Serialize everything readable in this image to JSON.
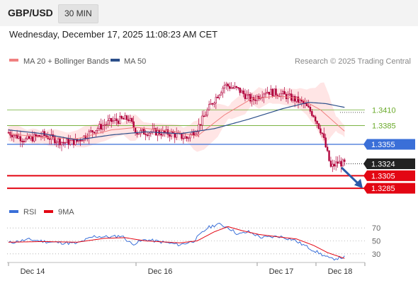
{
  "header": {
    "symbol": "GBP/USD",
    "timeframe": "30 MIN",
    "datetime": "Wednesday, December 17, 2025 11:08:23 AM CET"
  },
  "legend": {
    "ma20_label": "MA 20 + Bollinger Bands",
    "ma50_label": "MA 50",
    "credit": "Research © 2025 Trading Central",
    "rsi_label": "RSI",
    "rsi_ma_label": "9MA"
  },
  "colors": {
    "ma20": "#f08080",
    "ma50": "#2c4f8a",
    "band_fill": "#ffe0e0",
    "candle": "#b0003a",
    "pivot": "#3a6fd8",
    "resistance": "#6aaa2a",
    "support": "#e30613",
    "rsi": "#3a6fd8",
    "rsi_ma": "#e30613",
    "arrow": "#2a5aa8"
  },
  "chart_data": [
    {
      "type": "candlestick",
      "title": "GBP/USD",
      "x_ticks": [
        "Dec 14",
        "Dec 16",
        "Dec 17",
        "Dec 18"
      ],
      "ylim": [
        1.3258,
        1.3478
      ],
      "levels": [
        {
          "value": 1.341,
          "label": "1.3410",
          "kind": "resistance"
        },
        {
          "value": 1.3385,
          "label": "1.3385",
          "kind": "resistance"
        },
        {
          "value": 1.3355,
          "label": "1.3355",
          "kind": "pivot"
        },
        {
          "value": 1.3324,
          "label": "1.3324",
          "kind": "last_price"
        },
        {
          "value": 1.3305,
          "label": "1.3305",
          "kind": "support"
        },
        {
          "value": 1.3285,
          "label": "1.3285",
          "kind": "support"
        }
      ],
      "anchors": [
        [
          0,
          1.3374
        ],
        [
          10,
          1.3362
        ],
        [
          20,
          1.337
        ],
        [
          32,
          1.3358
        ],
        [
          40,
          1.336
        ],
        [
          50,
          1.3378
        ],
        [
          60,
          1.3392
        ],
        [
          70,
          1.3396
        ],
        [
          75,
          1.3374
        ],
        [
          85,
          1.3375
        ],
        [
          95,
          1.3372
        ],
        [
          104,
          1.3365
        ],
        [
          110,
          1.338
        ],
        [
          118,
          1.3418
        ],
        [
          126,
          1.345
        ],
        [
          134,
          1.3442
        ],
        [
          142,
          1.3425
        ],
        [
          150,
          1.344
        ],
        [
          158,
          1.3436
        ],
        [
          166,
          1.3428
        ],
        [
          172,
          1.342
        ],
        [
          178,
          1.3402
        ],
        [
          183,
          1.3372
        ],
        [
          186,
          1.334
        ],
        [
          188,
          1.3318
        ],
        [
          192,
          1.3326
        ],
        [
          196,
          1.3324
        ]
      ],
      "ma20": [
        [
          0,
          1.3372
        ],
        [
          20,
          1.3366
        ],
        [
          40,
          1.3364
        ],
        [
          60,
          1.3378
        ],
        [
          75,
          1.3382
        ],
        [
          95,
          1.3376
        ],
        [
          110,
          1.3368
        ],
        [
          126,
          1.3402
        ],
        [
          142,
          1.3428
        ],
        [
          158,
          1.3432
        ],
        [
          170,
          1.3428
        ],
        [
          182,
          1.341
        ],
        [
          196,
          1.3376
        ]
      ],
      "ma50": [
        [
          0,
          1.3378
        ],
        [
          20,
          1.3372
        ],
        [
          40,
          1.3362
        ],
        [
          60,
          1.337
        ],
        [
          80,
          1.3375
        ],
        [
          100,
          1.3372
        ],
        [
          120,
          1.338
        ],
        [
          140,
          1.3395
        ],
        [
          160,
          1.3412
        ],
        [
          175,
          1.3422
        ],
        [
          185,
          1.342
        ],
        [
          196,
          1.3414
        ]
      ]
    },
    {
      "type": "line",
      "title": "RSI",
      "y_ticks": [
        30,
        50,
        70
      ],
      "ylim": [
        20,
        80
      ],
      "series": [
        {
          "name": "RSI",
          "points": [
            [
              0,
              47
            ],
            [
              12,
              52
            ],
            [
              25,
              48
            ],
            [
              40,
              46
            ],
            [
              50,
              57
            ],
            [
              60,
              56
            ],
            [
              66,
              58
            ],
            [
              72,
              45
            ],
            [
              80,
              52
            ],
            [
              90,
              48
            ],
            [
              100,
              44
            ],
            [
              108,
              50
            ],
            [
              116,
              70
            ],
            [
              122,
              76
            ],
            [
              128,
              71
            ],
            [
              134,
              60
            ],
            [
              140,
              64
            ],
            [
              148,
              55
            ],
            [
              158,
              57
            ],
            [
              166,
              52
            ],
            [
              174,
              41
            ],
            [
              182,
              30
            ],
            [
              188,
              22
            ],
            [
              196,
              25
            ]
          ]
        },
        {
          "name": "9MA",
          "points": [
            [
              0,
              48
            ],
            [
              20,
              49
            ],
            [
              40,
              48
            ],
            [
              56,
              54
            ],
            [
              68,
              55
            ],
            [
              80,
              50
            ],
            [
              100,
              47
            ],
            [
              110,
              50
            ],
            [
              120,
              64
            ],
            [
              128,
              72
            ],
            [
              136,
              66
            ],
            [
              146,
              60
            ],
            [
              158,
              56
            ],
            [
              168,
              53
            ],
            [
              178,
              43
            ],
            [
              186,
              32
            ],
            [
              196,
              23
            ]
          ]
        }
      ]
    }
  ]
}
